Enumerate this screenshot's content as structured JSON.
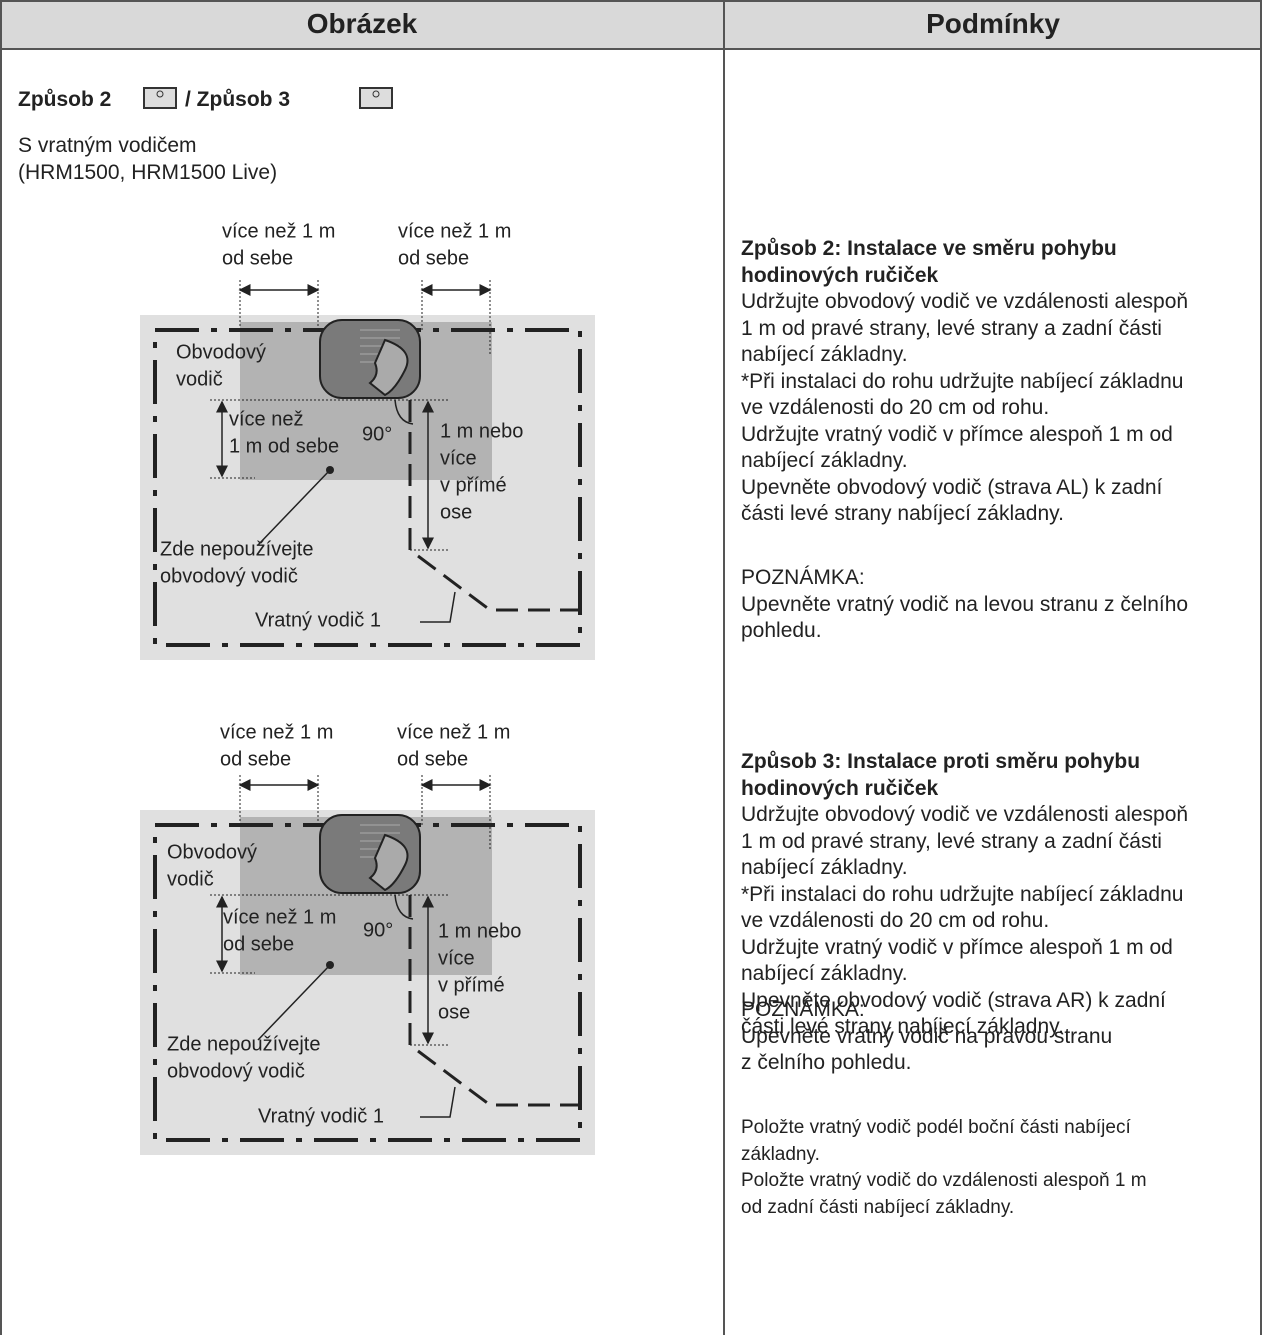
{
  "table": {
    "headers": [
      "Obrázek",
      "Podmínky"
    ],
    "left": {
      "heading_a": "Způsob 2",
      "heading_b": "/ Způsob 3",
      "subtitle_lines": [
        "S vratným vodičem",
        "(HRM1500, HRM1500 Live)"
      ],
      "diagrams": [
        {
          "gap_left": [
            "více než 1 m",
            "od sebe"
          ],
          "gap_right": [
            "více než 1 m",
            "od sebe"
          ],
          "perimeter_wire": [
            "Obvodový",
            "vodič"
          ],
          "gap_front": [
            "více než",
            "1 m od sebe"
          ],
          "angle": "90°",
          "straight": [
            "1 m nebo",
            "více",
            "v přímé",
            "ose"
          ],
          "no_wire": [
            "Zde nepoužívejte",
            "obvodový vodič"
          ],
          "return_wire": "Vratný vodič 1"
        },
        {
          "gap_left": [
            "více než 1 m",
            "od sebe"
          ],
          "gap_right": [
            "více než 1 m",
            "od sebe"
          ],
          "perimeter_wire": [
            "Obvodový",
            "vodič"
          ],
          "gap_front": [
            "více než 1 m",
            "od sebe"
          ],
          "angle": "90°",
          "straight": [
            "1 m nebo",
            "více",
            "v přímé",
            "ose"
          ],
          "no_wire": [
            "Zde nepoužívejte",
            "obvodový vodič"
          ],
          "return_wire": "Vratný vodič 1"
        }
      ]
    },
    "right": {
      "sections": [
        {
          "title_lines": [
            "Způsob 2: Instalace ve směru pohybu",
            "hodinových ručiček"
          ],
          "body_lines": [
            "Udržujte obvodový vodič ve vzdálenosti alespoň",
            "1 m od pravé strany, levé strany a zadní části",
            "nabíjecí základny.",
            "*Při instalaci do rohu udržujte nabíjecí základnu",
            "ve vzdálenosti do 20 cm od rohu.",
            "Udržujte vratný vodič v přímce alespoň 1 m od",
            "nabíjecí základny.",
            "Upevněte obvodový vodič (strava AL) k zadní",
            "části levé strany nabíjecí základny."
          ],
          "note_lines": [
            "POZNÁMKA:",
            "Upevněte vratný vodič na levou stranu z čelního",
            "pohledu."
          ]
        },
        {
          "title_lines": [
            "Způsob 3: Instalace proti směru pohybu",
            "hodinových ručiček"
          ],
          "body_lines": [
            "Udržujte obvodový vodič ve vzdálenosti alespoň",
            "1 m od pravé strany, levé strany a zadní části",
            "nabíjecí základny.",
            "*Při instalaci do rohu udržujte nabíjecí základnu",
            "ve vzdálenosti do 20 cm od rohu.",
            "Udržujte vratný vodič v přímce alespoň 1 m od",
            "nabíjecí základny.",
            "Upevněte obvodový vodič (strava AR) k zadní",
            "části levé strany nabíjecí základny."
          ],
          "note_lines": [
            "POZNÁMKA:",
            "Upevněte vratný vodič na pravou stranu",
            "z čelního pohledu."
          ]
        }
      ],
      "footer_lines": [
        "Položte vratný vodič podél boční části nabíjecí",
        "základny.",
        "Položte vratný vodič do vzdálenosti alespoň 1 m",
        "od zadní části nabíjecí základny."
      ]
    }
  }
}
